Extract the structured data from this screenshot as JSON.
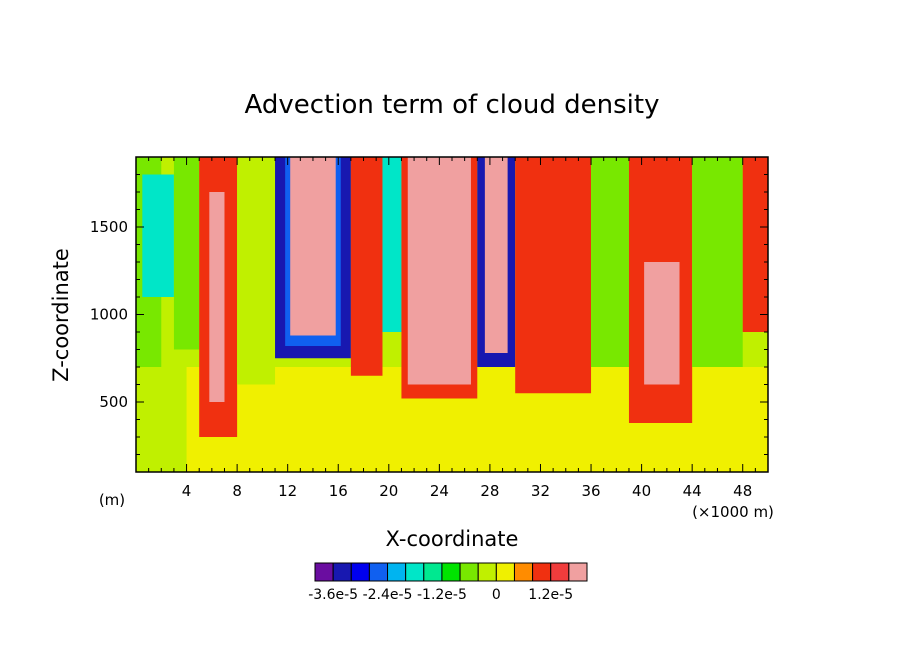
{
  "chart_data": {
    "type": "heatmap",
    "title": "Advection term of cloud density",
    "xlabel": "X-coordinate",
    "ylabel": "Z-coordinate",
    "x_unit_left": "(m)",
    "x_unit_right": "(×1000 m)",
    "xlim": [
      0,
      50
    ],
    "ylim": [
      100,
      1900
    ],
    "x_ticks": [
      4,
      8,
      12,
      16,
      20,
      24,
      28,
      32,
      36,
      40,
      44,
      48
    ],
    "x_tick_labels": [
      "4",
      "8",
      "12",
      "16",
      "20",
      "24",
      "28",
      "32",
      "36",
      "40",
      "44",
      "48"
    ],
    "y_ticks": [
      500,
      1000,
      1500
    ],
    "y_tick_labels": [
      "500",
      "1000",
      "1500"
    ],
    "colorbar": {
      "colors": [
        "#6a0da0",
        "#1818b0",
        "#0000ee",
        "#1060f0",
        "#00b4f0",
        "#00e6c8",
        "#00e890",
        "#00e400",
        "#78e800",
        "#c0f000",
        "#f0f000",
        "#ff8c00",
        "#f03010",
        "#f03c3c",
        "#f0a0a0"
      ],
      "tick_labels": [
        "-3.6e-5",
        "-2.4e-5",
        "-1.2e-5",
        "0",
        "1.2e-5"
      ]
    },
    "bands": [
      {
        "x": [
          0,
          4
        ],
        "z": [
          100,
          700
        ],
        "level": 9
      },
      {
        "x": [
          4,
          50
        ],
        "z": [
          100,
          700
        ],
        "level": 10
      },
      {
        "x": [
          0,
          2
        ],
        "z": [
          700,
          1900
        ],
        "level": 8
      },
      {
        "x": [
          0.5,
          3
        ],
        "z": [
          1100,
          1800
        ],
        "level": 5
      },
      {
        "x": [
          3,
          5
        ],
        "z": [
          800,
          1900
        ],
        "level": 8
      },
      {
        "x": [
          5,
          8
        ],
        "z": [
          300,
          1900
        ],
        "level": 12
      },
      {
        "x": [
          5.8,
          7
        ],
        "z": [
          500,
          1700
        ],
        "level": 14
      },
      {
        "x": [
          8,
          11
        ],
        "z": [
          600,
          1900
        ],
        "level": 9
      },
      {
        "x": [
          11,
          17
        ],
        "z": [
          750,
          1900
        ],
        "level": 1
      },
      {
        "x": [
          11.8,
          16.2
        ],
        "z": [
          820,
          1900
        ],
        "level": 3
      },
      {
        "x": [
          12.2,
          15.8
        ],
        "z": [
          880,
          1900
        ],
        "level": 14
      },
      {
        "x": [
          17,
          19.5
        ],
        "z": [
          650,
          1900
        ],
        "level": 12
      },
      {
        "x": [
          19.5,
          21
        ],
        "z": [
          900,
          1900
        ],
        "level": 5
      },
      {
        "x": [
          21,
          27
        ],
        "z": [
          520,
          1900
        ],
        "level": 12
      },
      {
        "x": [
          21.5,
          26.5
        ],
        "z": [
          600,
          1900
        ],
        "level": 14
      },
      {
        "x": [
          27,
          30
        ],
        "z": [
          700,
          1900
        ],
        "level": 1
      },
      {
        "x": [
          27.6,
          29.4
        ],
        "z": [
          780,
          1900
        ],
        "level": 14
      },
      {
        "x": [
          30,
          36
        ],
        "z": [
          550,
          1900
        ],
        "level": 12
      },
      {
        "x": [
          36,
          39
        ],
        "z": [
          700,
          1900
        ],
        "level": 8
      },
      {
        "x": [
          39,
          44
        ],
        "z": [
          380,
          1900
        ],
        "level": 12
      },
      {
        "x": [
          40.2,
          43
        ],
        "z": [
          600,
          1300
        ],
        "level": 14
      },
      {
        "x": [
          44,
          48
        ],
        "z": [
          700,
          1900
        ],
        "level": 8
      },
      {
        "x": [
          48,
          50
        ],
        "z": [
          900,
          1900
        ],
        "level": 12
      }
    ]
  }
}
